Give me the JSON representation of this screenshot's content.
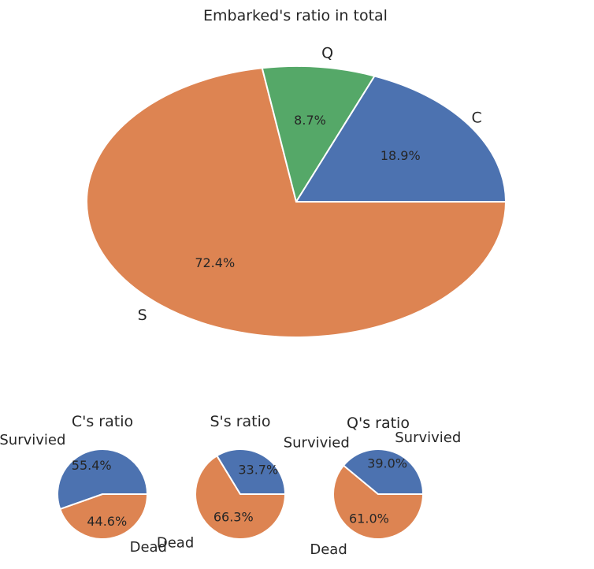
{
  "chart_data": [
    {
      "type": "pie",
      "title": "Embarked's ratio in total",
      "categories": [
        "C",
        "Q",
        "S"
      ],
      "values": [
        18.9,
        8.7,
        72.4
      ],
      "value_labels": [
        "18.9%",
        "8.7%",
        "72.4%"
      ],
      "colors": [
        "#4c72b0",
        "#55a868",
        "#dd8452"
      ]
    },
    {
      "type": "pie",
      "title": "C's ratio",
      "categories": [
        "Survivied",
        "Dead"
      ],
      "values": [
        55.4,
        44.6
      ],
      "value_labels": [
        "55.4%",
        "44.6%"
      ],
      "colors": [
        "#4c72b0",
        "#dd8452"
      ]
    },
    {
      "type": "pie",
      "title": "S's ratio",
      "categories": [
        "Survivied",
        "Dead"
      ],
      "values": [
        33.7,
        66.3
      ],
      "value_labels": [
        "33.7%",
        "66.3%"
      ],
      "colors": [
        "#4c72b0",
        "#dd8452"
      ]
    },
    {
      "type": "pie",
      "title": "Q's ratio",
      "categories": [
        "Survivied",
        "Dead"
      ],
      "values": [
        39.0,
        61.0
      ],
      "value_labels": [
        "39.0%",
        "61.0%"
      ],
      "colors": [
        "#4c72b0",
        "#dd8452"
      ]
    }
  ]
}
